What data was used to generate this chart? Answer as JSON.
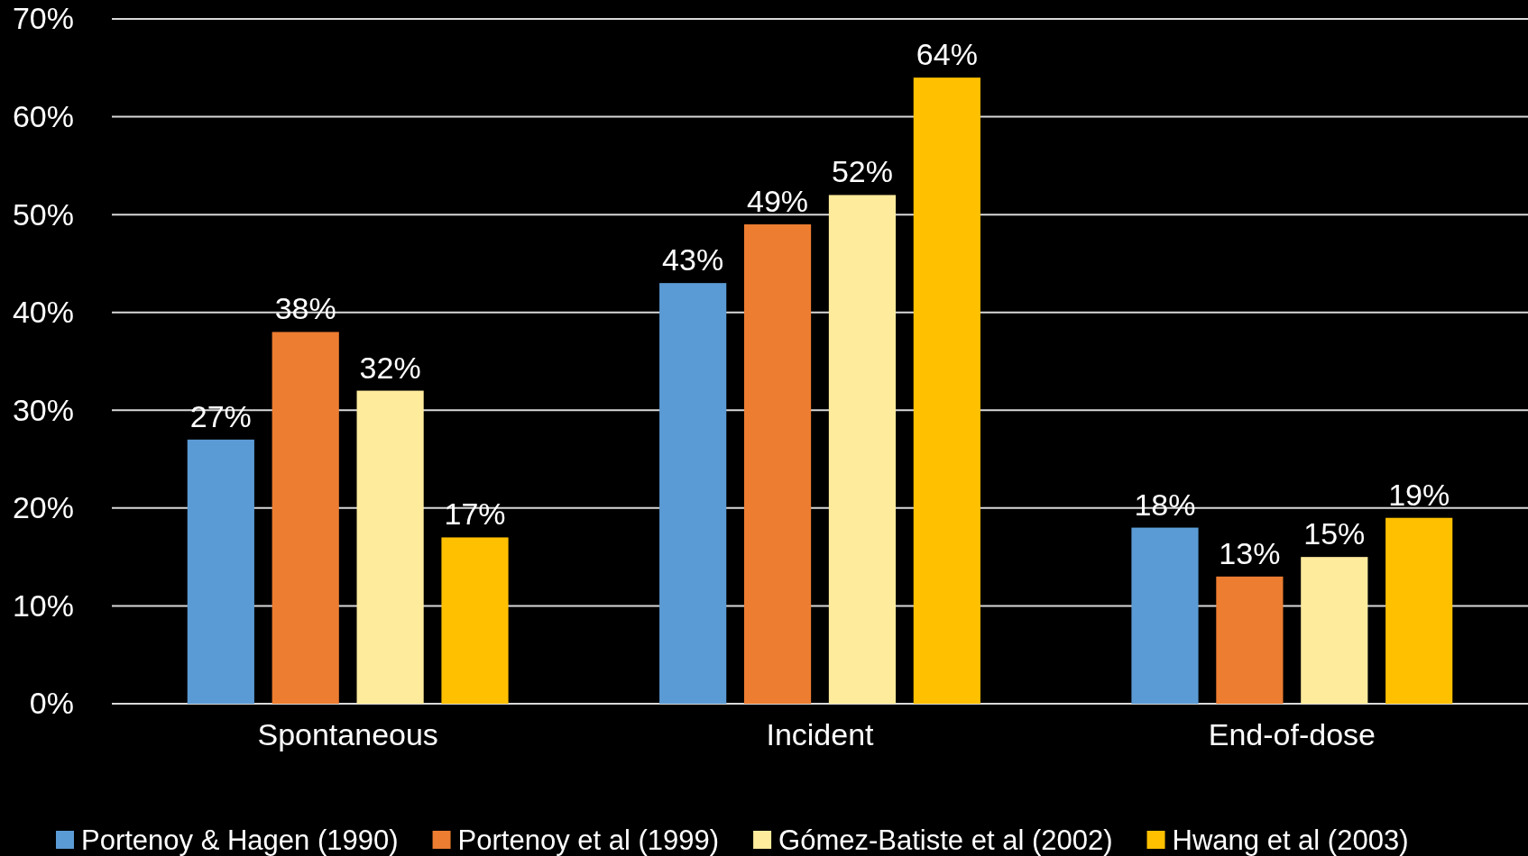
{
  "chart_data": {
    "type": "bar",
    "categories": [
      "Spontaneous",
      "Incident",
      "End-of-dose"
    ],
    "series": [
      {
        "name": "Portenoy & Hagen (1990)",
        "color": "#5b9bd5",
        "values": [
          27,
          43,
          18
        ]
      },
      {
        "name": "Portenoy et al (1999)",
        "color": "#ed7d31",
        "values": [
          38,
          49,
          13
        ]
      },
      {
        "name": "Gómez-Batiste et al (2002)",
        "color": "#ffeb9c",
        "values": [
          32,
          52,
          15
        ]
      },
      {
        "name": "Hwang et al (2003)",
        "color": "#ffc000",
        "values": [
          17,
          64,
          19
        ]
      }
    ],
    "ylim": [
      0,
      70
    ],
    "yticks": [
      {
        "value": 0,
        "label": "0%"
      },
      {
        "value": 10,
        "label": "10%"
      },
      {
        "value": 20,
        "label": "20%"
      },
      {
        "value": 30,
        "label": "30%"
      },
      {
        "value": 40,
        "label": "40%"
      },
      {
        "value": 50,
        "label": "50%"
      },
      {
        "value": 60,
        "label": "60%"
      },
      {
        "value": 70,
        "label": "70%"
      }
    ],
    "grid": "y",
    "legend": "bottom",
    "value_labels": [
      [
        "27%",
        "43%",
        "18%"
      ],
      [
        "38%",
        "49%",
        "13%"
      ],
      [
        "32%",
        "52%",
        "15%"
      ],
      [
        "17%",
        "64%",
        "19%"
      ]
    ]
  }
}
